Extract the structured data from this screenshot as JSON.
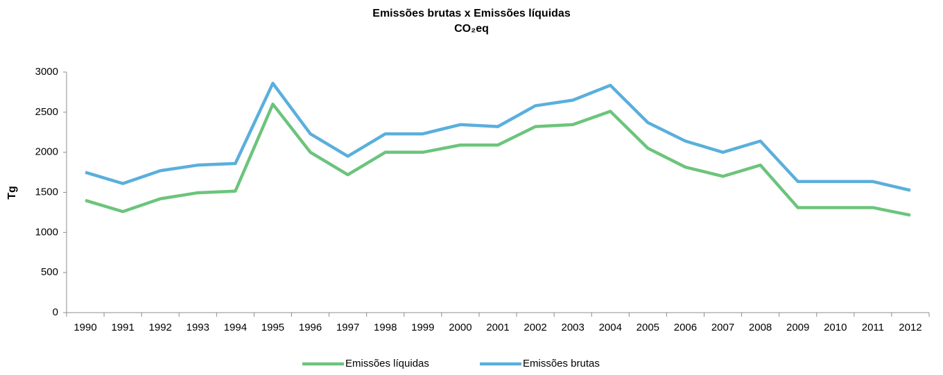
{
  "chart_data": {
    "type": "line",
    "title": "Emissões brutas x Emissões líquidas",
    "subtitle": "CO₂eq",
    "y_label": "Tg",
    "categories": [
      "1990",
      "1991",
      "1992",
      "1993",
      "1994",
      "1995",
      "1996",
      "1997",
      "1998",
      "1999",
      "2000",
      "2001",
      "2002",
      "2003",
      "2004",
      "2005",
      "2006",
      "2007",
      "2008",
      "2009",
      "2010",
      "2011",
      "2012"
    ],
    "series": [
      {
        "name": "Emissões líquidas",
        "color": "#6cc47c",
        "values": [
          1400,
          1260,
          1420,
          1495,
          1515,
          2600,
          2000,
          1720,
          2000,
          2000,
          2090,
          2090,
          2320,
          2345,
          2510,
          2050,
          1815,
          1700,
          1840,
          1310,
          1310,
          1310,
          1215
        ]
      },
      {
        "name": "Emissões brutas",
        "color": "#5aafdc",
        "values": [
          1750,
          1610,
          1770,
          1840,
          1860,
          2860,
          2230,
          1950,
          2230,
          2230,
          2345,
          2320,
          2580,
          2650,
          2835,
          2370,
          2140,
          2000,
          2140,
          1635,
          1635,
          1635,
          1525
        ]
      }
    ],
    "ylim": [
      0,
      3000
    ],
    "yticks": [
      0,
      500,
      1000,
      1500,
      2000,
      2500,
      3000
    ],
    "grid": false,
    "legend": "bottom"
  }
}
